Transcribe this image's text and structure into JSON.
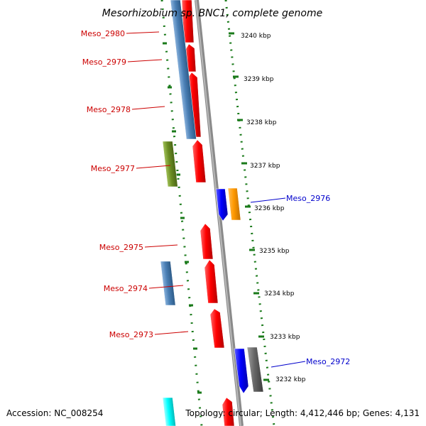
{
  "title": "Mesorhizobium sp. BNC1, complete genome",
  "accession": "Accession: NC_008254",
  "topology": "Topology: circular; Length: 4,412,446 bp; Genes: 4,131",
  "colors": {
    "forward_label": "#cc0000",
    "reverse_label": "#0000cc",
    "tick": "#1a7a1a",
    "backbone": "#8a8a8a",
    "red_gene": "#ff0000",
    "steelblue_gene": "#4a7fb5",
    "olive_gene": "#6b8e23",
    "blue_gene": "#0000ff",
    "orange_gene": "#ff9900",
    "gray_gene": "#666666",
    "cyan_gene": "#00ffff"
  },
  "scale_labels": [
    "3240 kbp",
    "3239 kbp",
    "3238 kbp",
    "3237 kbp",
    "3236 kbp",
    "3235 kbp",
    "3234 kbp",
    "3233 kbp",
    "3232 kbp"
  ],
  "gene_labels": {
    "left": [
      "Meso_2980",
      "Meso_2979",
      "Meso_2978",
      "Meso_2977",
      "Meso_2975",
      "Meso_2974",
      "Meso_2973"
    ],
    "right": [
      "Meso_2976",
      "Meso_2972"
    ]
  }
}
